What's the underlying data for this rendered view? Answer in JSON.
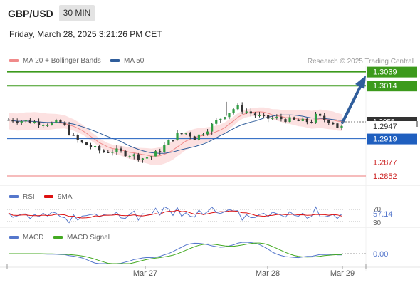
{
  "header": {
    "symbol": "GBP/USD",
    "timeframe": "30 MIN",
    "datetime": "Friday, March 28, 2025 3:21:26 PM CET"
  },
  "legend": {
    "items": [
      {
        "label": "MA 20 + Bollinger Bands",
        "color": "#f08a8a"
      },
      {
        "label": "MA 50",
        "color": "#2f5d9b"
      }
    ],
    "copyright": "Research © 2025 Trading Central"
  },
  "rsi_legend": [
    {
      "label": "RSI",
      "color": "#5577cc"
    },
    {
      "label": "9MA",
      "color": "#dd1111"
    }
  ],
  "macd_legend": [
    {
      "label": "MACD",
      "color": "#5577cc"
    },
    {
      "label": "MACD Signal",
      "color": "#44aa22"
    }
  ],
  "colors": {
    "up": "#2f9e44",
    "down": "#333333",
    "resistance": "#3c9a1c",
    "pivot": "#1f5fbf",
    "support": "#ee7a7a",
    "band_fill": "#fbdada",
    "arrow": "#2f5d9b",
    "current_price_bg": "#333333"
  },
  "chart_data": [
    {
      "type": "candlestick",
      "title": "GBP/USD 30 MIN",
      "x_tick_labels": [
        "Mar 27",
        "Mar 28",
        "Mar 29"
      ],
      "y_range": [
        1.2838,
        1.305
      ],
      "levels": [
        {
          "label": "1.3039",
          "value": 1.3039,
          "role": "resistance"
        },
        {
          "label": "1.3014",
          "value": 1.3014,
          "role": "resistance"
        },
        {
          "label": "1.2919",
          "value": 1.2919,
          "role": "pivot"
        },
        {
          "label": "1.2877",
          "value": 1.2877,
          "role": "support"
        },
        {
          "label": "1.2852",
          "value": 1.2852,
          "role": "support"
        }
      ],
      "current_price": {
        "label": "1.2947",
        "value": 1.2947,
        "hidden_label": "1.2955"
      },
      "indicators": [
        "MA 20 + Bollinger Bands",
        "MA 50"
      ]
    },
    {
      "type": "line",
      "title": "RSI",
      "y_tick_labels": [
        "70",
        "30"
      ],
      "y_range": [
        25,
        75
      ],
      "current_value": "57.14",
      "series": [
        "RSI",
        "9MA"
      ]
    },
    {
      "type": "line",
      "title": "MACD",
      "current_value": "0.00",
      "series": [
        "MACD",
        "MACD Signal"
      ]
    }
  ]
}
